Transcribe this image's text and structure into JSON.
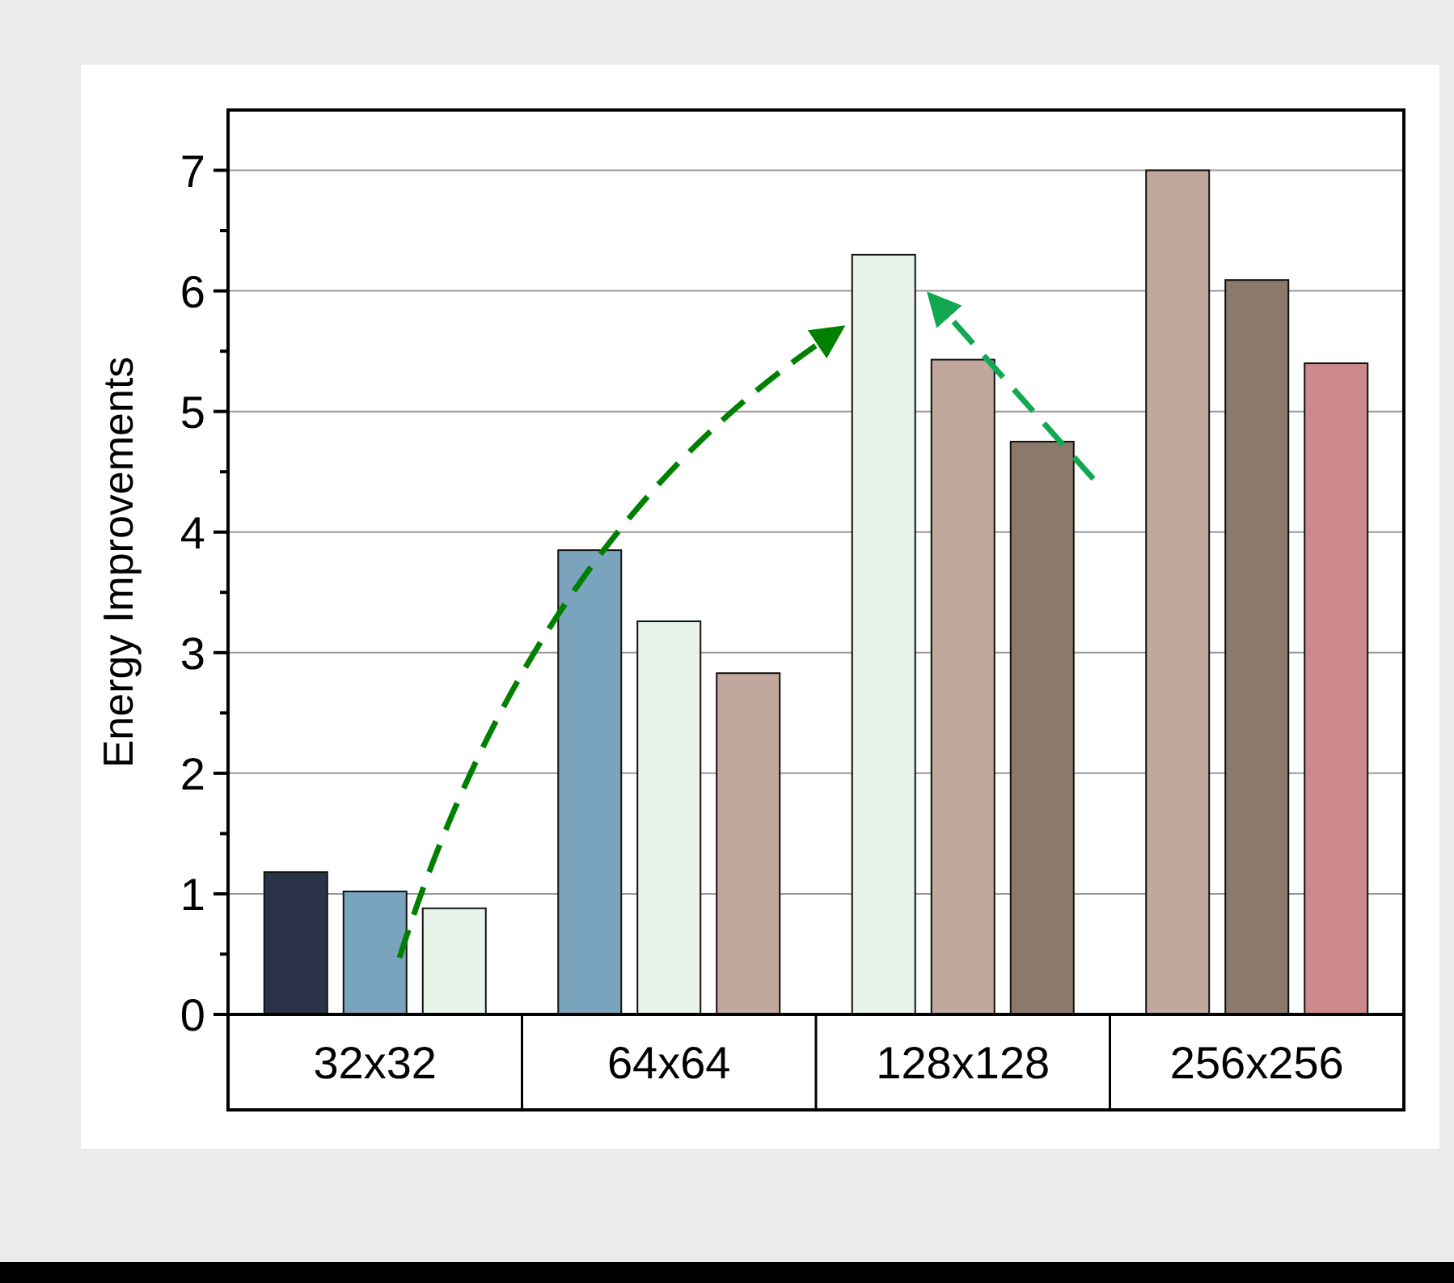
{
  "chart_data": {
    "type": "bar",
    "ylabel": "Energy Improvements",
    "categories": [
      "32x32",
      "64x64",
      "128x128",
      "256x256"
    ],
    "series": [
      {
        "colors": [
          "#2a3347",
          "#7aa3bd",
          "#e8f3ea",
          "#c0a89c"
        ],
        "values": [
          1.18,
          3.85,
          6.3,
          7.0
        ]
      },
      {
        "colors": [
          "#7aa3bd",
          "#e8f3ea",
          "#c0a89c",
          "#8b7a6c"
        ],
        "values": [
          1.02,
          3.26,
          5.43,
          6.09
        ]
      },
      {
        "colors": [
          "#e8f3ea",
          "#c0a89c",
          "#8b7a6c",
          "#cd8a8c"
        ],
        "values": [
          0.88,
          2.83,
          4.75,
          5.4
        ]
      }
    ],
    "ylim": [
      0,
      7.5
    ],
    "yticks": [
      0,
      {
        "value": 0.5,
        "label": null
      },
      1,
      {
        "value": 1.5,
        "label": null
      },
      2,
      {
        "value": 2.5,
        "label": null
      },
      3,
      {
        "value": 3.5,
        "label": null
      },
      4,
      {
        "value": 4.5,
        "label": null
      },
      5,
      {
        "value": 5.5,
        "label": null
      },
      6,
      {
        "value": 6.5,
        "label": null
      },
      7
    ],
    "grid": "y"
  }
}
